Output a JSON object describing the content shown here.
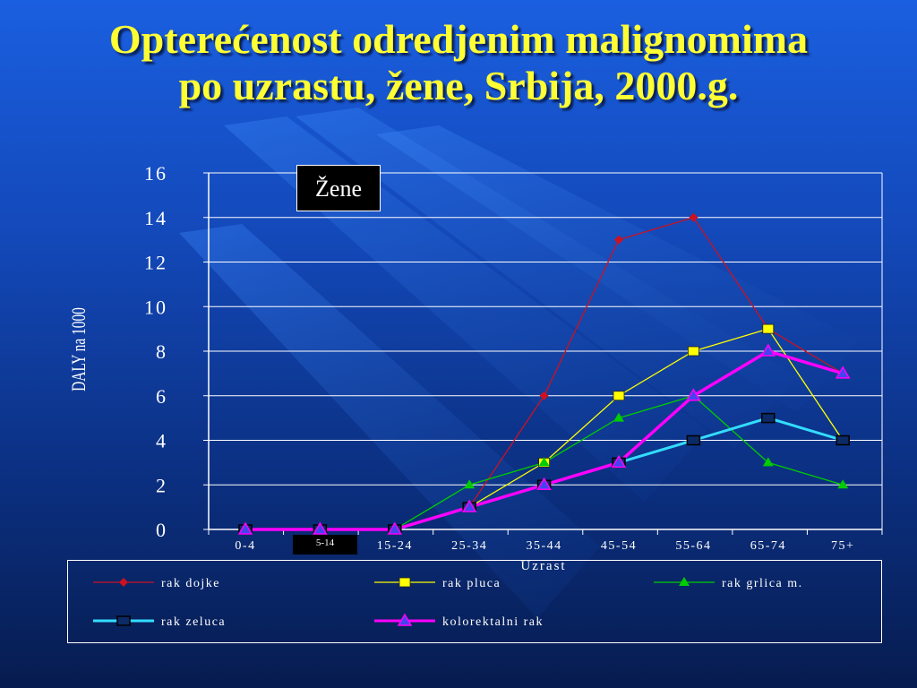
{
  "title": {
    "line1": "Opterećenost odredjenim malignomima",
    "line2": "po uzrastu, žene, Srbija, 2000.g."
  },
  "badge": "Žene",
  "note": "5-14",
  "chart_data": {
    "type": "line",
    "xlabel": "Uzrast",
    "ylabel": "DALY na 1000",
    "categories": [
      "0-4",
      "5-14",
      "15-24",
      "25-34",
      "35-44",
      "45-54",
      "55-64",
      "65-74",
      "75+"
    ],
    "ylim": [
      0,
      16
    ],
    "yticks": [
      0,
      2,
      4,
      6,
      8,
      10,
      12,
      14,
      16
    ],
    "grid": true,
    "legend_position": "bottom",
    "series": [
      {
        "name": "rak dojke",
        "color": "#cc1122",
        "marker": "diamond",
        "values": [
          0,
          0,
          0,
          1,
          6,
          13,
          14,
          9,
          7
        ]
      },
      {
        "name": "rak pluca",
        "color": "#ffff00",
        "marker": "square",
        "values": [
          0,
          0,
          0,
          1,
          3,
          6,
          8,
          9,
          4
        ]
      },
      {
        "name": "rak grlica m.",
        "color": "#00cc00",
        "marker": "triangle",
        "values": [
          0,
          0,
          0,
          2,
          3,
          5,
          6,
          3,
          2
        ]
      },
      {
        "name": "rak zeluca",
        "color": "#33ddff",
        "marker": "square-dark",
        "values": [
          0,
          0,
          0,
          1,
          2,
          3,
          4,
          5,
          4
        ]
      },
      {
        "name": "kolorektalni rak",
        "color": "#ff00ff",
        "marker": "triangle-blue",
        "values": [
          0,
          0,
          0,
          1,
          2,
          3,
          6,
          8,
          7
        ]
      }
    ]
  }
}
